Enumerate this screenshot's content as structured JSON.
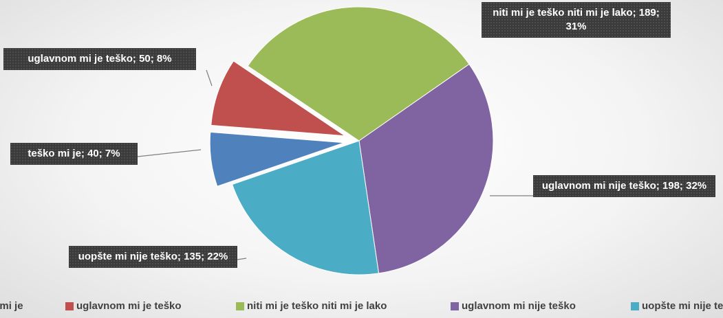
{
  "chart_data": {
    "type": "pie",
    "categories": [
      "teško mi je",
      "uglavnom mi je teško",
      "niti mi je teško niti mi je lako",
      "uglavnom mi nije teško",
      "uopšte mi nije teško"
    ],
    "values": [
      40,
      50,
      189,
      198,
      135
    ],
    "value_labels": [
      "teško mi je; 40; 7%",
      "uglavnom mi je teško; 50; 8%",
      "niti mi je teško niti mi je lako; 189; 31%",
      "uglavnom mi nije teško; 198; 32%",
      "uopšte mi nije teško; 135; 22%"
    ],
    "colors": [
      "#4f81bd",
      "#c0504d",
      "#9bbb59",
      "#8064a2",
      "#4bacc6"
    ],
    "legend": "bottom"
  }
}
